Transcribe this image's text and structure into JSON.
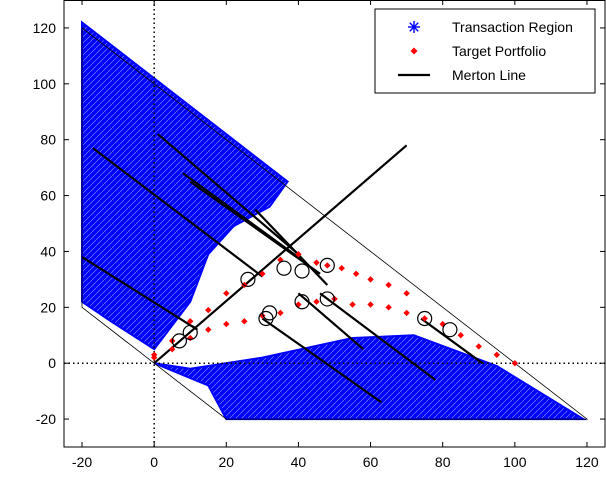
{
  "chart_data": {
    "type": "scatter",
    "title": "",
    "xlabel": "",
    "ylabel": "",
    "xlim": [
      -25,
      125
    ],
    "ylim": [
      -30,
      130
    ],
    "x_ticks": [
      -20,
      0,
      20,
      40,
      60,
      80,
      100,
      120
    ],
    "y_ticks": [
      -20,
      0,
      20,
      40,
      60,
      80,
      100,
      120
    ],
    "x_tick_labels": [
      "-20",
      "0",
      "20",
      "40",
      "60",
      "80",
      "100",
      "120"
    ],
    "y_tick_labels": [
      "-20",
      "0",
      "20",
      "40",
      "60",
      "80",
      "100",
      "120"
    ],
    "grid": false,
    "legend_position": "top-right",
    "legend": [
      {
        "label": "Transaction Region",
        "marker": "*",
        "color": "#0000ff"
      },
      {
        "label": "Target Portfolio",
        "marker": "diamond",
        "color": "#ff0000"
      },
      {
        "label": "Merton Line",
        "marker": "line",
        "color": "#000000"
      }
    ],
    "colors": {
      "region": "#0000ff",
      "target": "#ff0000",
      "line": "#000000",
      "frame": "#000000"
    },
    "reference_lines": {
      "x_zero": 0,
      "y_zero": 0,
      "style": "dotted"
    },
    "boundary": [
      [
        -20,
        20
      ],
      [
        -20,
        120
      ],
      [
        120,
        -20
      ],
      [
        20,
        -20
      ]
    ],
    "series": [
      {
        "name": "Transaction Region",
        "type": "region",
        "polygons": [
          [
            [
              -20,
              22
            ],
            [
              -20,
              122
            ],
            [
              37,
              65
            ],
            [
              32,
              56
            ],
            [
              22,
              49
            ],
            [
              15,
              39
            ],
            [
              10,
              22
            ],
            [
              0,
              5
            ],
            [
              -12,
              15
            ],
            [
              -20,
              22
            ]
          ],
          [
            [
              0,
              0
            ],
            [
              15,
              -8
            ],
            [
              20,
              -20
            ],
            [
              119,
              -20
            ],
            [
              95,
              -1
            ],
            [
              72,
              10
            ],
            [
              55,
              9
            ],
            [
              30,
              2
            ],
            [
              10,
              -2
            ],
            [
              0,
              0
            ]
          ]
        ]
      },
      {
        "name": "Target Portfolio",
        "type": "curve",
        "values": [
          {
            "x": 0,
            "y": 3
          },
          {
            "x": 5,
            "y": 8
          },
          {
            "x": 10,
            "y": 15
          },
          {
            "x": 15,
            "y": 19
          },
          {
            "x": 20,
            "y": 25
          },
          {
            "x": 25,
            "y": 28
          },
          {
            "x": 30,
            "y": 32
          },
          {
            "x": 35,
            "y": 37
          },
          {
            "x": 40,
            "y": 39
          },
          {
            "x": 45,
            "y": 36
          },
          {
            "x": 48,
            "y": 35
          },
          {
            "x": 52,
            "y": 34
          },
          {
            "x": 56,
            "y": 32
          },
          {
            "x": 60,
            "y": 30
          },
          {
            "x": 65,
            "y": 28
          },
          {
            "x": 70,
            "y": 25
          },
          {
            "x": 0,
            "y": 2
          },
          {
            "x": 5,
            "y": 5
          },
          {
            "x": 10,
            "y": 9
          },
          {
            "x": 15,
            "y": 12
          },
          {
            "x": 20,
            "y": 14
          },
          {
            "x": 25,
            "y": 15
          },
          {
            "x": 30,
            "y": 17
          },
          {
            "x": 35,
            "y": 18
          },
          {
            "x": 40,
            "y": 21
          },
          {
            "x": 45,
            "y": 22
          },
          {
            "x": 50,
            "y": 23
          },
          {
            "x": 55,
            "y": 21
          },
          {
            "x": 60,
            "y": 21
          },
          {
            "x": 65,
            "y": 20
          },
          {
            "x": 70,
            "y": 18
          },
          {
            "x": 75,
            "y": 16
          },
          {
            "x": 80,
            "y": 14
          },
          {
            "x": 85,
            "y": 10
          },
          {
            "x": 90,
            "y": 6
          },
          {
            "x": 95,
            "y": 3
          },
          {
            "x": 100,
            "y": 0
          }
        ]
      },
      {
        "name": "Circled Target Points",
        "values": [
          {
            "x": 7,
            "y": 8
          },
          {
            "x": 10,
            "y": 11
          },
          {
            "x": 26,
            "y": 30
          },
          {
            "x": 32,
            "y": 18
          },
          {
            "x": 31,
            "y": 16
          },
          {
            "x": 36,
            "y": 34
          },
          {
            "x": 41,
            "y": 33
          },
          {
            "x": 41,
            "y": 22
          },
          {
            "x": 48,
            "y": 35
          },
          {
            "x": 48,
            "y": 23
          },
          {
            "x": 75,
            "y": 16
          },
          {
            "x": 82,
            "y": 12
          }
        ]
      },
      {
        "name": "Merton Line",
        "segments": [
          [
            [
              0,
              0
            ],
            [
              70,
              78
            ]
          ],
          [
            [
              -20,
              38
            ],
            [
              12,
              12
            ]
          ],
          [
            [
              -17,
              77
            ],
            [
              30,
              31
            ]
          ],
          [
            [
              1,
              82
            ],
            [
              40,
              39
            ]
          ],
          [
            [
              8,
              68
            ],
            [
              42,
              36
            ]
          ],
          [
            [
              10,
              65
            ],
            [
              46,
              32
            ]
          ],
          [
            [
              28,
              55
            ],
            [
              48,
              28
            ]
          ],
          [
            [
              30,
              16
            ],
            [
              63,
              -14
            ]
          ],
          [
            [
              40,
              25
            ],
            [
              58,
              5
            ]
          ],
          [
            [
              46,
              25
            ],
            [
              78,
              -6
            ]
          ],
          [
            [
              74,
              16
            ],
            [
              91,
              0
            ]
          ]
        ]
      }
    ]
  }
}
